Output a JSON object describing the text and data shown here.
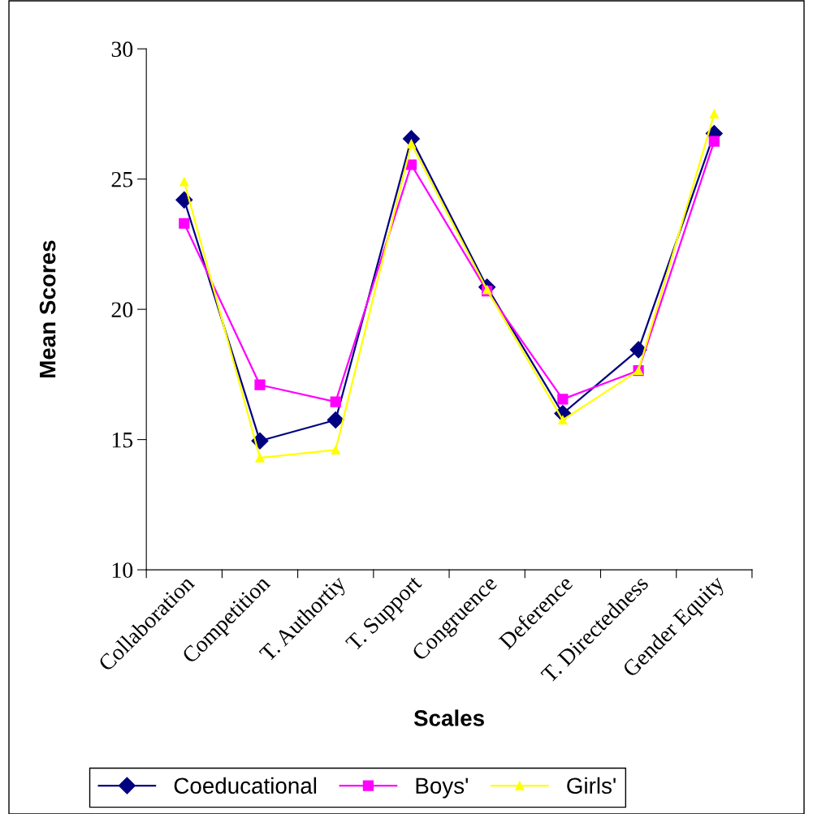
{
  "chart_data": {
    "type": "line",
    "xlabel": "Scales",
    "ylabel": "Mean Scores",
    "categories": [
      "Collaboration",
      "Competition",
      "T. Authortiy",
      "T. Support",
      "Congruence",
      "Deference",
      "T. Directedness",
      "Gender Equity"
    ],
    "series": [
      {
        "name": "Coeducational",
        "color": "#000080",
        "marker": "diamond",
        "values": [
          24.2,
          14.95,
          15.75,
          26.55,
          20.85,
          16.0,
          18.45,
          26.75
        ]
      },
      {
        "name": "Boys'",
        "color": "#ff00ff",
        "marker": "square",
        "values": [
          23.3,
          17.1,
          16.45,
          25.55,
          20.7,
          16.55,
          17.65,
          26.45
        ]
      },
      {
        "name": "Girls'",
        "color": "#ffff00",
        "marker": "triangle",
        "values": [
          24.9,
          14.3,
          14.6,
          26.35,
          20.75,
          15.75,
          17.65,
          27.5
        ]
      }
    ],
    "ylim": [
      10,
      30
    ],
    "yticks": [
      10,
      15,
      20,
      25,
      30
    ],
    "grid": false,
    "legend": "bottom",
    "line_style": "solid"
  }
}
